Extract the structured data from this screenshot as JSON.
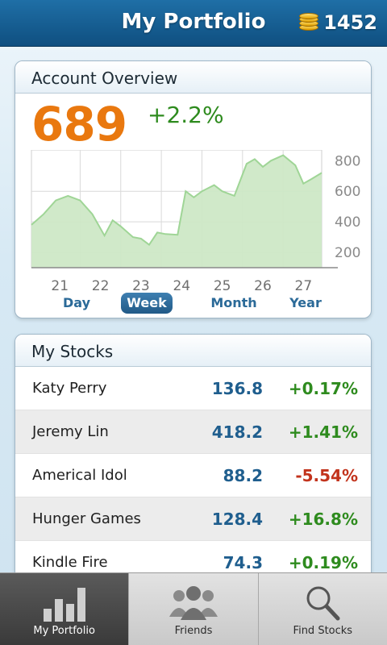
{
  "header": {
    "title": "My Portfolio",
    "coins": "1452",
    "coin_icon": "coin-stack-icon"
  },
  "overview": {
    "title": "Account Overview",
    "value": "689",
    "change": "+2.2%",
    "ranges": [
      {
        "label": "Day"
      },
      {
        "label": "Week",
        "active": true
      },
      {
        "label": "Month"
      },
      {
        "label": "Year"
      }
    ]
  },
  "chart_data": {
    "type": "area",
    "title": "",
    "xlabel": "",
    "ylabel": "",
    "x_ticks": [
      "21",
      "22",
      "23",
      "24",
      "25",
      "26",
      "27"
    ],
    "y_ticks": [
      "800",
      "600",
      "400",
      "200"
    ],
    "ylim": [
      100,
      870
    ],
    "xlim": [
      20.3,
      27.45
    ],
    "grid": true,
    "fill_color": "#cde8c6",
    "line_color": "#9fd596",
    "series": [
      {
        "x": [
          20.3,
          20.6,
          20.9,
          21.2,
          21.5,
          21.8,
          22.1,
          22.3,
          22.5,
          22.8,
          23.0,
          23.2,
          23.4,
          23.6,
          23.9,
          24.1,
          24.3,
          24.5,
          24.8,
          25.0,
          25.3,
          25.6,
          25.8,
          26.0,
          26.2,
          26.5,
          26.8,
          27.0,
          27.2,
          27.45
        ],
        "y": [
          380,
          450,
          540,
          570,
          540,
          450,
          310,
          410,
          370,
          300,
          290,
          250,
          330,
          320,
          315,
          600,
          560,
          600,
          640,
          600,
          570,
          780,
          810,
          760,
          800,
          835,
          770,
          650,
          680,
          720
        ]
      }
    ]
  },
  "stocks": {
    "title": "My Stocks",
    "rows": [
      {
        "name": "Katy Perry",
        "price": "136.8",
        "change": "+0.17%",
        "dir": "up"
      },
      {
        "name": "Jeremy Lin",
        "price": "418.2",
        "change": "+1.41%",
        "dir": "up"
      },
      {
        "name": "Americal Idol",
        "price": "88.2",
        "change": "-5.54%",
        "dir": "down"
      },
      {
        "name": "Hunger Games",
        "price": "128.4",
        "change": "+16.8%",
        "dir": "up"
      },
      {
        "name": "Kindle Fire",
        "price": "74.3",
        "change": "+0.19%",
        "dir": "up"
      }
    ]
  },
  "tabs": [
    {
      "label": "My Portfolio",
      "icon": "bar-chart-icon",
      "active": true
    },
    {
      "label": "Friends",
      "icon": "people-icon"
    },
    {
      "label": "Find Stocks",
      "icon": "magnifier-icon"
    }
  ]
}
